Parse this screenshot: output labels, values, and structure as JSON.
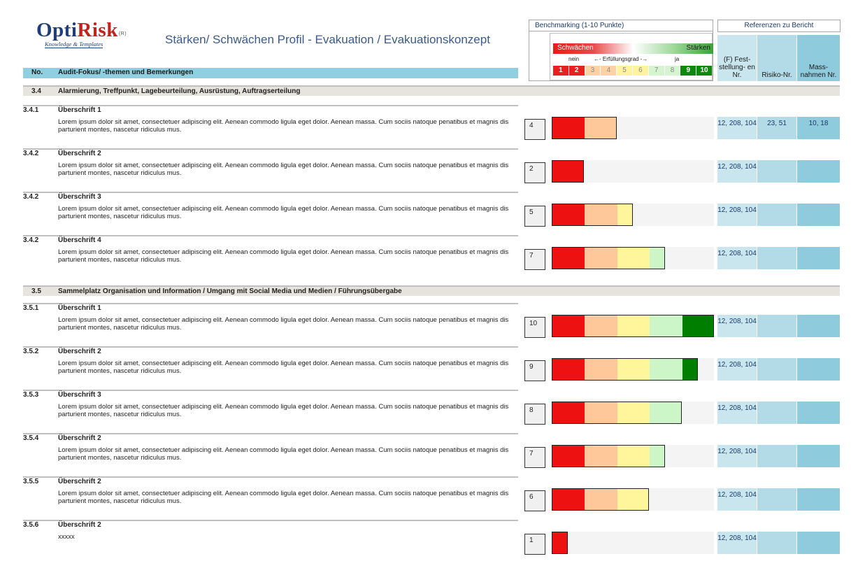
{
  "logo": {
    "brand_opti": "Opti",
    "brand_risk": "Risk",
    "reg": "(R)",
    "subtitle": "Knowledge & Templates"
  },
  "title": "Stärken/ Schwächen Profil - Evakuation / Evakuationskonzept",
  "columns": {
    "no": "No.",
    "topic": "Audit-Fokus/ -themen und Bemerkungen"
  },
  "benchmark": {
    "title": "Benchmarking (1-10 Punkte)",
    "weak_label": "Schwächen",
    "strong_label": "Stärken",
    "scale_no": "nein",
    "scale_mid": "←- Erfüllungsgrad -→",
    "scale_yes": "ja",
    "scale_numbers": [
      "1",
      "2",
      "3",
      "4",
      "5",
      "6",
      "7",
      "8",
      "9",
      "10"
    ]
  },
  "references": {
    "title": "Referenzen zu Bericht",
    "col1": "(F) Fest- stellung- en Nr.",
    "col2": "Risiko-Nr.",
    "col3": "Mass- nahmen Nr."
  },
  "colors": {
    "seg": [
      "#ee1111",
      "#ee1111",
      "#ffc89a",
      "#ffc89a",
      "#fff59a",
      "#fff59a",
      "#cdf6c8",
      "#cdf6c8",
      "#007e00",
      "#007e00"
    ],
    "cell_bg": [
      "#e82020",
      "#e82020",
      "#ffd2a6",
      "#ffd2a6",
      "#fff3a0",
      "#fff3a0",
      "#d6f4cf",
      "#d6f4cf",
      "#0d8a0d",
      "#0d8a0d"
    ]
  },
  "sections": [
    {
      "no": "3.4",
      "title": "Alarmierung, Treffpunkt, Lagebeurteilung, Ausrüstung, Auftragserteilung"
    },
    {
      "no": "3.5",
      "title": "Sammelplatz Organisation und Information / Umgang mit Social Media und Medien / Führungsübergabe"
    }
  ],
  "items": [
    {
      "no": "3.4.1",
      "title": "Überschrift 1",
      "text": "Lorem ipsum dolor sit amet, consectetuer adipiscing elit. Aenean commodo ligula eget dolor. Aenean massa. Cum sociis natoque penatibus et magnis dis parturient montes, nascetur ridiculus mus.",
      "score": 4,
      "score_label": "4",
      "ref1": "12, 208, 104",
      "ref2": "23, 51",
      "ref3": "10, 18"
    },
    {
      "no": "3.4.2",
      "title": "Überschrift 2",
      "text": "Lorem ipsum dolor sit amet, consectetuer adipiscing elit. Aenean commodo ligula eget dolor. Aenean massa. Cum sociis natoque penatibus et magnis dis parturient montes, nascetur ridiculus mus.",
      "score": 2,
      "score_label": "2",
      "ref1": "12, 208, 104",
      "ref2": "",
      "ref3": ""
    },
    {
      "no": "3.4.2",
      "title": "Überschrift 3",
      "text": "Lorem ipsum dolor sit amet, consectetuer adipiscing elit. Aenean commodo ligula eget dolor. Aenean massa. Cum sociis natoque penatibus et magnis dis parturient montes, nascetur ridiculus mus.",
      "score": 5,
      "score_label": "5",
      "ref1": "12, 208, 104",
      "ref2": "",
      "ref3": ""
    },
    {
      "no": "3.4.2",
      "title": "Überschrift 4",
      "text": "Lorem ipsum dolor sit amet, consectetuer adipiscing elit. Aenean commodo ligula eget dolor. Aenean massa. Cum sociis natoque penatibus et magnis dis parturient montes, nascetur ridiculus mus.",
      "score": 7,
      "score_label": "7",
      "ref1": "12, 208, 104",
      "ref2": "",
      "ref3": ""
    },
    {
      "no": "3.5.1",
      "title": "Überschrift 1",
      "text": "Lorem ipsum dolor sit amet, consectetuer adipiscing elit. Aenean commodo ligula eget dolor. Aenean massa. Cum sociis natoque penatibus et magnis dis parturient montes, nascetur ridiculus mus.",
      "score": 10,
      "score_label": "10",
      "ref1": "12, 208, 104",
      "ref2": "",
      "ref3": ""
    },
    {
      "no": "3.5.2",
      "title": "Überschrift 2",
      "text": "Lorem ipsum dolor sit amet, consectetuer adipiscing elit. Aenean commodo ligula eget dolor. Aenean massa. Cum sociis natoque penatibus et magnis dis parturient montes, nascetur ridiculus mus.",
      "score": 9,
      "score_label": "9",
      "ref1": "12, 208, 104",
      "ref2": "",
      "ref3": ""
    },
    {
      "no": "3.5.3",
      "title": "Überschrift 3",
      "text": "Lorem ipsum dolor sit amet, consectetuer adipiscing elit. Aenean commodo ligula eget dolor. Aenean massa. Cum sociis natoque penatibus et magnis dis parturient montes, nascetur ridiculus mus.",
      "score": 8,
      "score_label": "8",
      "ref1": "12, 208, 104",
      "ref2": "",
      "ref3": ""
    },
    {
      "no": "3.5.4",
      "title": "Überschrift 2",
      "text": "Lorem ipsum dolor sit amet, consectetuer adipiscing elit. Aenean commodo ligula eget dolor. Aenean massa. Cum sociis natoque penatibus et magnis dis parturient montes, nascetur ridiculus mus.",
      "score": 7,
      "score_label": "7",
      "ref1": "12, 208, 104",
      "ref2": "",
      "ref3": ""
    },
    {
      "no": "3.5.5",
      "title": "Überschrift 2",
      "text": "Lorem ipsum dolor sit amet, consectetuer adipiscing elit. Aenean commodo ligula eget dolor. Aenean massa. Cum sociis natoque penatibus et magnis dis parturient montes, nascetur ridiculus mus.",
      "score": 6,
      "score_label": "6",
      "ref1": "12, 208, 104",
      "ref2": "",
      "ref3": ""
    },
    {
      "no": "3.5.6",
      "title": "Überschrift 2",
      "text": "xxxxx",
      "score": 1,
      "score_label": "1",
      "ref1": "12, 208, 104",
      "ref2": "",
      "ref3": ""
    }
  ]
}
